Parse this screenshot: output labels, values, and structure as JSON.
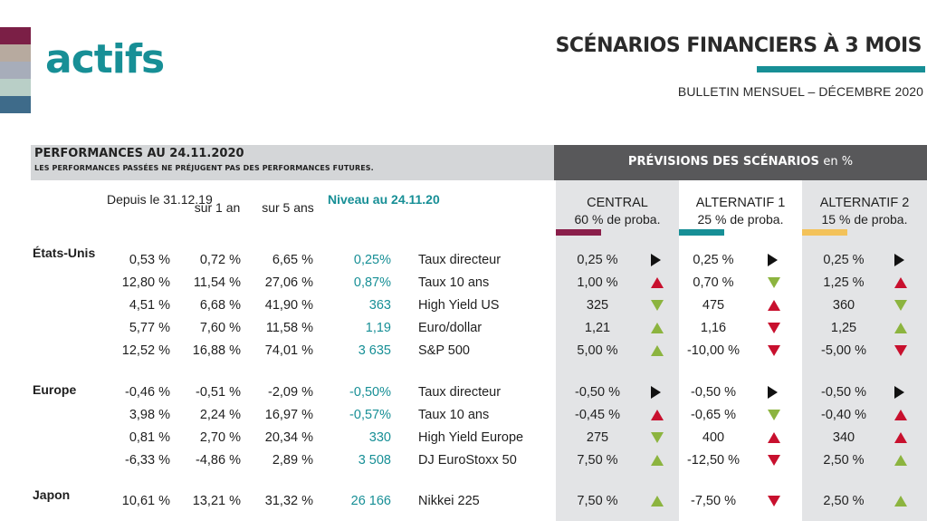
{
  "logo": {
    "text": "actifs",
    "swatches": [
      "#7b1f46",
      "#b7aa9f",
      "#a7adba",
      "#b9cfc7",
      "#3e6b8a"
    ]
  },
  "header": {
    "title": "SCÉNARIOS FINANCIERS À 3 MOIS",
    "bulletin": "BULLETIN MENSUEL – DÉCEMBRE 2020"
  },
  "performances": {
    "title": "PERFORMANCES AU 24.11.2020",
    "note": "LES PERFORMANCES PASSÉES NE PRÉJUGENT PAS DES PERFORMANCES FUTURES.",
    "columns": {
      "ytd": "Depuis le 31.12.19",
      "y1": "sur 1 an",
      "y5": "sur 5 ans",
      "level": "Niveau au 24.11.20"
    }
  },
  "forecast": {
    "title": "PRÉVISIONS DES SCÉNARIOS",
    "title_unit": "en %",
    "scenarios": [
      {
        "name": "CENTRAL",
        "proba": "60 % de proba.",
        "color": "#8a1e4a"
      },
      {
        "name": "ALTERNATIF 1",
        "proba": "25 % de proba.",
        "color": "#178f96"
      },
      {
        "name": "ALTERNATIF 2",
        "proba": "15 % de proba.",
        "color": "#f3c25a"
      }
    ]
  },
  "regions": [
    {
      "name": "États-Unis",
      "rows": [
        {
          "ytd": "0,53 %",
          "y1": "0,72 %",
          "y5": "6,65 %",
          "level": "0,25%",
          "label": "Taux directeur",
          "sc": [
            {
              "v": "0,25 %",
              "t": "right"
            },
            {
              "v": "0,25 %",
              "t": "right"
            },
            {
              "v": "0,25 %",
              "t": "right"
            }
          ]
        },
        {
          "ytd": "12,80 %",
          "y1": "11,54 %",
          "y5": "27,06 %",
          "level": "0,87%",
          "label": "Taux 10 ans",
          "sc": [
            {
              "v": "1,00 %",
              "t": "up-red"
            },
            {
              "v": "0,70 %",
              "t": "down-green"
            },
            {
              "v": "1,25 %",
              "t": "up-red"
            }
          ]
        },
        {
          "ytd": "4,51 %",
          "y1": "6,68 %",
          "y5": "41,90 %",
          "level": "363",
          "label": "High Yield US",
          "sc": [
            {
              "v": "325",
              "t": "down-green"
            },
            {
              "v": "475",
              "t": "up-red"
            },
            {
              "v": "360",
              "t": "down-green"
            }
          ]
        },
        {
          "ytd": "5,77 %",
          "y1": "7,60 %",
          "y5": "11,58 %",
          "level": "1,19",
          "label": "Euro/dollar",
          "sc": [
            {
              "v": "1,21",
              "t": "up-green"
            },
            {
              "v": "1,16",
              "t": "down-red"
            },
            {
              "v": "1,25",
              "t": "up-green"
            }
          ]
        },
        {
          "ytd": "12,52 %",
          "y1": "16,88 %",
          "y5": "74,01 %",
          "level": "3 635",
          "label": "S&P 500",
          "sc": [
            {
              "v": "5,00 %",
              "t": "up-green"
            },
            {
              "v": "-10,00 %",
              "t": "down-red"
            },
            {
              "v": "-5,00 %",
              "t": "down-red"
            }
          ]
        }
      ]
    },
    {
      "name": "Europe",
      "rows": [
        {
          "ytd": "-0,46 %",
          "y1": "-0,51 %",
          "y5": "-2,09 %",
          "level": "-0,50%",
          "label": "Taux directeur",
          "sc": [
            {
              "v": "-0,50 %",
              "t": "right"
            },
            {
              "v": "-0,50 %",
              "t": "right"
            },
            {
              "v": "-0,50 %",
              "t": "right"
            }
          ]
        },
        {
          "ytd": "3,98 %",
          "y1": "2,24 %",
          "y5": "16,97 %",
          "level": "-0,57%",
          "label": "Taux 10 ans",
          "sc": [
            {
              "v": "-0,45 %",
              "t": "up-red"
            },
            {
              "v": "-0,65 %",
              "t": "down-green"
            },
            {
              "v": "-0,40 %",
              "t": "up-red"
            }
          ]
        },
        {
          "ytd": "0,81 %",
          "y1": "2,70 %",
          "y5": "20,34 %",
          "level": "330",
          "label": "High Yield Europe",
          "sc": [
            {
              "v": "275",
              "t": "down-green"
            },
            {
              "v": "400",
              "t": "up-red"
            },
            {
              "v": "340",
              "t": "up-red"
            }
          ]
        },
        {
          "ytd": "-6,33 %",
          "y1": "-4,86 %",
          "y5": "2,89 %",
          "level": "3 508",
          "label": "DJ EuroStoxx 50",
          "sc": [
            {
              "v": "7,50 %",
              "t": "up-green"
            },
            {
              "v": "-12,50 %",
              "t": "down-red"
            },
            {
              "v": "2,50 %",
              "t": "up-green"
            }
          ]
        }
      ]
    },
    {
      "name": "Japon",
      "rows": [
        {
          "ytd": "10,61 %",
          "y1": "13,21 %",
          "y5": "31,32 %",
          "level": "26 166",
          "label": "Nikkei 225",
          "sc": [
            {
              "v": "7,50 %",
              "t": "up-green"
            },
            {
              "v": "-7,50 %",
              "t": "down-red"
            },
            {
              "v": "2,50 %",
              "t": "up-green"
            }
          ]
        }
      ]
    }
  ]
}
